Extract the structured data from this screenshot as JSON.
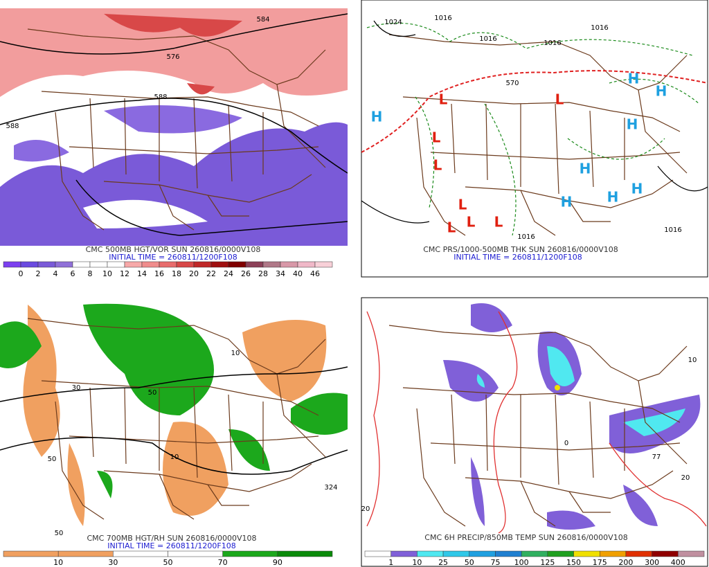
{
  "panels": [
    {
      "title": "CMC 500MB HGT/VOR SUN 260816/0000V108",
      "initial_time": "INITIAL TIME = 260811/1200F108",
      "map_labels": [
        "584",
        "576",
        "588",
        "588"
      ],
      "colorbar": {
        "labels": [
          0,
          2,
          4,
          6,
          8,
          10,
          12,
          14,
          16,
          18,
          20,
          22,
          24,
          26,
          28,
          34,
          40,
          46
        ],
        "colors": [
          "#7c3ff0",
          "#6a4ae0",
          "#7a5ad8",
          "#9070d8",
          "#ffffff",
          "#ffffff",
          "#ffffff",
          "#f7a8a8",
          "#f08c8c",
          "#e86c6c",
          "#d84848",
          "#c02828",
          "#a01010",
          "#800000",
          "#8c4058",
          "#b07888",
          "#d898a8",
          "#f0b8c8",
          "#f8d0d8"
        ]
      }
    },
    {
      "title": "CMC PRS/1000-500MB THK SUN 260816/0000V108",
      "initial_time": "INITIAL TIME = 260811/1200F108",
      "map_labels": [
        "1024",
        "1016",
        "1016",
        "1016",
        "1016",
        "570",
        "1016",
        "1016",
        "H",
        "H",
        "H",
        "H",
        "H",
        "H",
        "H",
        "H",
        "L",
        "L",
        "L",
        "L",
        "L",
        "L",
        "L",
        "L"
      ]
    },
    {
      "title": "CMC 700MB HGT/RH SUN 260816/0000V108",
      "initial_time": "INITIAL TIME = 260811/1200F108",
      "map_labels": [
        "50",
        "10",
        "50",
        "30",
        "324",
        "50",
        "10"
      ],
      "colorbar": {
        "labels": [
          10,
          30,
          50,
          70,
          90
        ],
        "colors": [
          "#f0a060",
          "#f0a060",
          "#ffffff",
          "#ffffff",
          "#1ca81c",
          "#0a8a0a"
        ]
      }
    },
    {
      "title": "CMC 6H PRECIP/850MB TEMP SUN 260816/0000V108",
      "map_labels": [
        "10",
        "20",
        "77",
        "0",
        "20"
      ],
      "colorbar": {
        "labels": [
          1,
          10,
          25,
          50,
          75,
          100,
          125,
          150,
          175,
          200,
          300,
          400
        ],
        "colors": [
          "#ffffff",
          "#8060d8",
          "#50e8f0",
          "#30c8e8",
          "#20a0e0",
          "#2080d0",
          "#30b060",
          "#20a020",
          "#f0e000",
          "#f0a000",
          "#e03000",
          "#900000",
          "#c090a0"
        ]
      }
    }
  ]
}
